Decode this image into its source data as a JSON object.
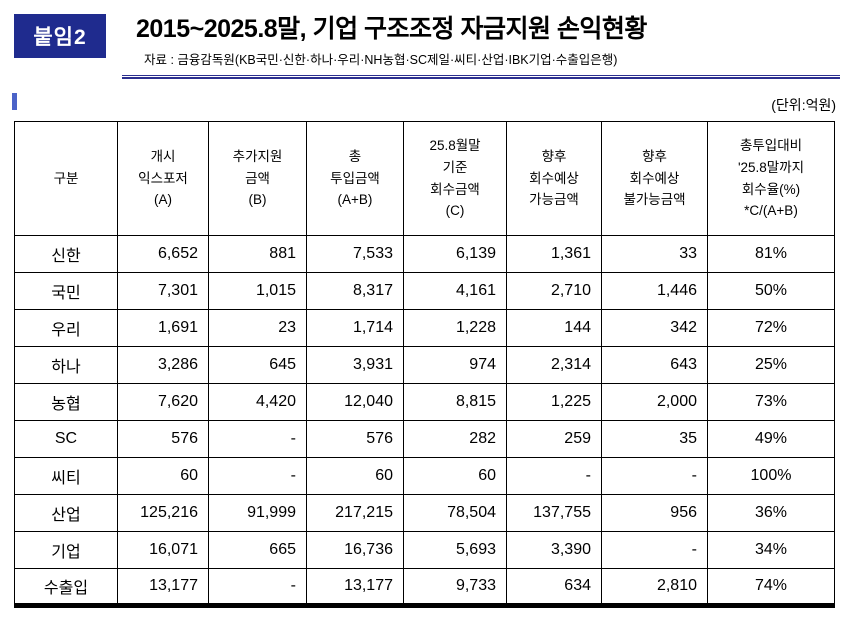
{
  "page": {
    "badge": "붙임2",
    "title": "2015~2025.8말, 기업 구조조정 자금지원 손익현황",
    "source": "자료 : 금융감독원(KB국민·신한·하나·우리·NH농협·SC제일·씨티·산업·IBK기업·수출입은행)",
    "unit": "(단위:억원)"
  },
  "colors": {
    "badge_bg": "#1f2b8e",
    "rule": "#2b2f8e",
    "marker": "#4b63c8",
    "table_border": "#000000"
  },
  "table": {
    "headers": [
      "구분",
      "개시\n익스포저\n(A)",
      "추가지원\n금액\n(B)",
      "총\n투입금액\n(A+B)",
      "25.8월말\n기준\n회수금액\n(C)",
      "향후\n회수예상\n가능금액",
      "향후\n회수예상\n불가능금액",
      "총투입대비\n'25.8말까지\n회수율(%)\n*C/(A+B)"
    ],
    "rows": [
      {
        "name": "신한",
        "values": [
          "6,652",
          "881",
          "7,533",
          "6,139",
          "1,361",
          "33",
          "81%"
        ]
      },
      {
        "name": "국민",
        "values": [
          "7,301",
          "1,015",
          "8,317",
          "4,161",
          "2,710",
          "1,446",
          "50%"
        ]
      },
      {
        "name": "우리",
        "values": [
          "1,691",
          "23",
          "1,714",
          "1,228",
          "144",
          "342",
          "72%"
        ]
      },
      {
        "name": "하나",
        "values": [
          "3,286",
          "645",
          "3,931",
          "974",
          "2,314",
          "643",
          "25%"
        ]
      },
      {
        "name": "농협",
        "values": [
          "7,620",
          "4,420",
          "12,040",
          "8,815",
          "1,225",
          "2,000",
          "73%"
        ]
      },
      {
        "name": "SC",
        "values": [
          "576",
          "-",
          "576",
          "282",
          "259",
          "35",
          "49%"
        ]
      },
      {
        "name": "씨티",
        "values": [
          "60",
          "-",
          "60",
          "60",
          "-",
          "-",
          "100%"
        ]
      },
      {
        "name": "산업",
        "values": [
          "125,216",
          "91,999",
          "217,215",
          "78,504",
          "137,755",
          "956",
          "36%"
        ]
      },
      {
        "name": "기업",
        "values": [
          "16,071",
          "665",
          "16,736",
          "5,693",
          "3,390",
          "-",
          "34%"
        ]
      },
      {
        "name": "수출입",
        "values": [
          "13,177",
          "-",
          "13,177",
          "9,733",
          "634",
          "2,810",
          "74%"
        ]
      }
    ]
  }
}
